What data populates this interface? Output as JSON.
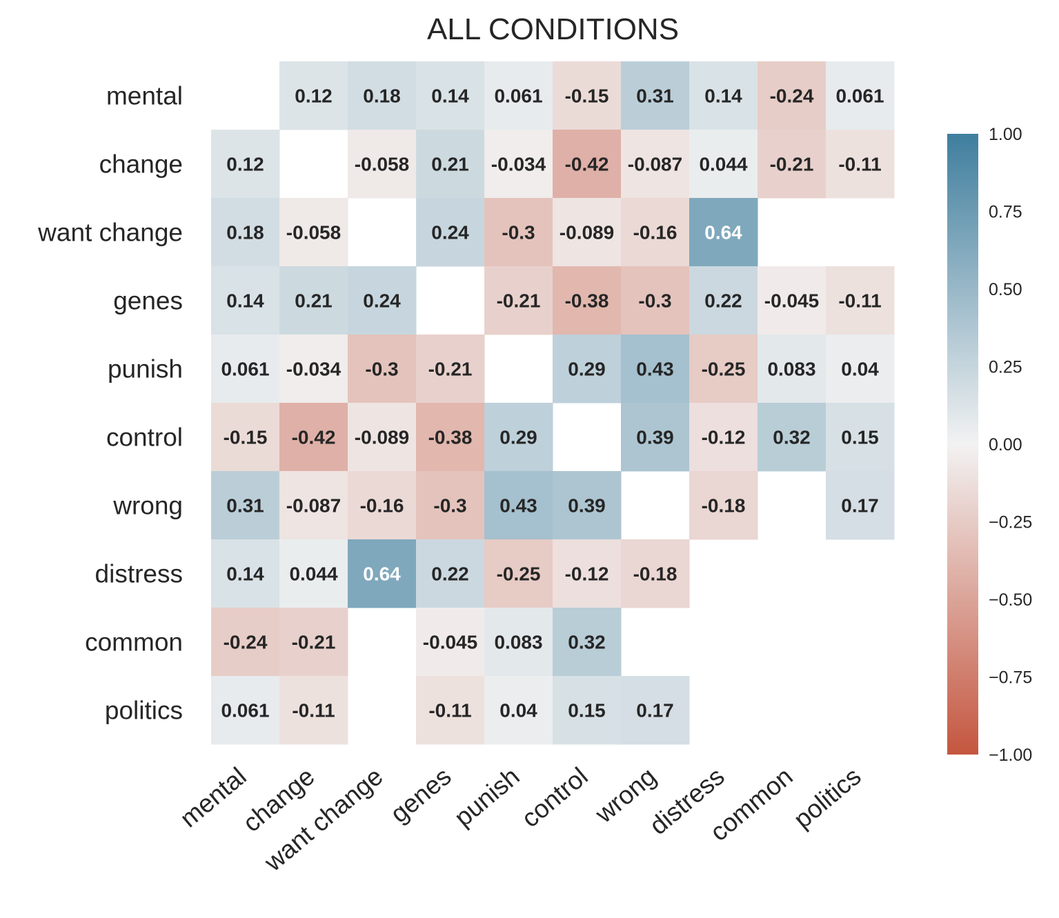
{
  "chart_data": {
    "type": "heatmap",
    "title": "ALL CONDITIONS",
    "row_labels": [
      "mental",
      "change",
      "want change",
      "genes",
      "punish",
      "control",
      "wrong",
      "distress",
      "common",
      "politics"
    ],
    "col_labels": [
      "mental",
      "change",
      "want change",
      "genes",
      "punish",
      "control",
      "wrong",
      "distress",
      "common",
      "politics"
    ],
    "values": [
      [
        null,
        0.12,
        0.18,
        0.14,
        0.061,
        -0.15,
        0.31,
        0.14,
        -0.24,
        0.061
      ],
      [
        0.12,
        null,
        -0.058,
        0.21,
        -0.034,
        -0.42,
        -0.087,
        0.044,
        -0.21,
        -0.11
      ],
      [
        0.18,
        -0.058,
        null,
        0.24,
        -0.3,
        -0.089,
        -0.16,
        0.64,
        null,
        null
      ],
      [
        0.14,
        0.21,
        0.24,
        null,
        -0.21,
        -0.38,
        -0.3,
        0.22,
        -0.045,
        -0.11
      ],
      [
        0.061,
        -0.034,
        -0.3,
        -0.21,
        null,
        0.29,
        0.43,
        -0.25,
        0.083,
        0.04
      ],
      [
        -0.15,
        -0.42,
        -0.089,
        -0.38,
        0.29,
        null,
        0.39,
        -0.12,
        0.32,
        0.15
      ],
      [
        0.31,
        -0.087,
        -0.16,
        -0.3,
        0.43,
        0.39,
        null,
        -0.18,
        null,
        0.17
      ],
      [
        0.14,
        0.044,
        0.64,
        0.22,
        -0.25,
        -0.12,
        -0.18,
        null,
        null,
        null
      ],
      [
        -0.24,
        -0.21,
        null,
        -0.045,
        0.083,
        0.32,
        null,
        null,
        null,
        null
      ],
      [
        0.061,
        -0.11,
        null,
        -0.11,
        0.04,
        0.15,
        0.17,
        null,
        null,
        null
      ]
    ],
    "cell_labels": [
      [
        null,
        "0.12",
        "0.18",
        "0.14",
        "0.061",
        "-0.15",
        "0.31",
        "0.14",
        "-0.24",
        "0.061"
      ],
      [
        "0.12",
        null,
        "-0.058",
        "0.21",
        "-0.034",
        "-0.42",
        "-0.087",
        "0.044",
        "-0.21",
        "-0.11"
      ],
      [
        "0.18",
        "-0.058",
        null,
        "0.24",
        "-0.3",
        "-0.089",
        "-0.16",
        "0.64",
        null,
        null
      ],
      [
        "0.14",
        "0.21",
        "0.24",
        null,
        "-0.21",
        "-0.38",
        "-0.3",
        "0.22",
        "-0.045",
        "-0.11"
      ],
      [
        "0.061",
        "-0.034",
        "-0.3",
        "-0.21",
        null,
        "0.29",
        "0.43",
        "-0.25",
        "0.083",
        "0.04"
      ],
      [
        "-0.15",
        "-0.42",
        "-0.089",
        "-0.38",
        "0.29",
        null,
        "0.39",
        "-0.12",
        "0.32",
        "0.15"
      ],
      [
        "0.31",
        "-0.087",
        "-0.16",
        "-0.3",
        "0.43",
        "0.39",
        null,
        "-0.18",
        null,
        "0.17"
      ],
      [
        "0.14",
        "0.044",
        "0.64",
        "0.22",
        "-0.25",
        "-0.12",
        "-0.18",
        null,
        null,
        null
      ],
      [
        "-0.24",
        "-0.21",
        null,
        "-0.045",
        "0.083",
        "0.32",
        null,
        null,
        null,
        null
      ],
      [
        "0.061",
        "-0.11",
        null,
        "-0.11",
        "0.04",
        "0.15",
        "0.17",
        null,
        null,
        null
      ]
    ],
    "colorbar": {
      "vmin": -1.0,
      "vmax": 1.0,
      "ticks": [
        "1.00",
        "0.75",
        "0.50",
        "0.25",
        "0.00",
        "−0.25",
        "−0.50",
        "−0.75",
        "−1.00"
      ],
      "colors": {
        "negative": "#c4563f",
        "center": "#f2f2f2",
        "positive": "#3f7e9e"
      }
    },
    "grid": false
  }
}
